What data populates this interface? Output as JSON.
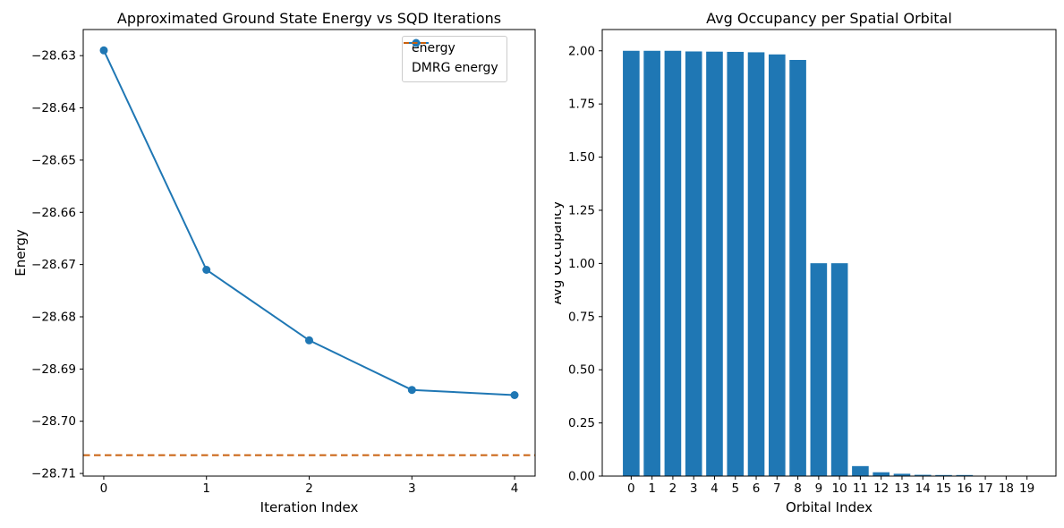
{
  "figure": {
    "background": "#ffffff",
    "axis_color": "#000000"
  },
  "chart_data": [
    {
      "type": "line",
      "title": "Approximated Ground State Energy vs SQD Iterations",
      "xlabel": "Iteration Index",
      "ylabel": "Energy",
      "x": [
        0,
        1,
        2,
        3,
        4
      ],
      "series": [
        {
          "name": "energy",
          "color": "#1f77b4",
          "marker": "circle",
          "values": [
            -28.629,
            -28.671,
            -28.6845,
            -28.694,
            -28.695
          ]
        }
      ],
      "reference_line": {
        "name": "DMRG energy",
        "color": "#c9600e",
        "style": "dashed",
        "value": -28.7065
      },
      "xlim": [
        -0.2,
        4.2
      ],
      "ylim": [
        -28.7105,
        -28.625
      ],
      "xticks": [
        0,
        1,
        2,
        3,
        4
      ],
      "xtick_labels": [
        "0",
        "1",
        "2",
        "3",
        "4"
      ],
      "yticks": [
        -28.63,
        -28.64,
        -28.65,
        -28.66,
        -28.67,
        -28.68,
        -28.69,
        -28.7,
        -28.71
      ],
      "ytick_labels": [
        "−28.63",
        "−28.64",
        "−28.65",
        "−28.66",
        "−28.67",
        "−28.68",
        "−28.69",
        "−28.70",
        "−28.71"
      ],
      "grid": false,
      "legend": {
        "position": "upper right",
        "entries": [
          {
            "label": "energy",
            "color": "#1f77b4",
            "style": "line-marker"
          },
          {
            "label": "DMRG energy",
            "color": "#c9600e",
            "style": "dashed"
          }
        ]
      }
    },
    {
      "type": "bar",
      "title": "Avg Occupancy per Spatial Orbital",
      "xlabel": "Orbital Index",
      "ylabel": "Avg Occupancy",
      "categories": [
        "0",
        "1",
        "2",
        "3",
        "4",
        "5",
        "6",
        "7",
        "8",
        "9",
        "10",
        "11",
        "12",
        "13",
        "14",
        "15",
        "16",
        "17",
        "18",
        "19"
      ],
      "values": [
        2.0,
        2.0,
        2.0,
        1.997,
        1.996,
        1.995,
        1.993,
        1.983,
        1.957,
        1.001,
        1.001,
        0.047,
        0.018,
        0.011,
        0.006,
        0.005,
        0.005,
        0.001,
        0.001,
        0.001
      ],
      "bar_color": "#1f77b4",
      "xlim": [
        -1.39,
        20.39
      ],
      "ylim": [
        0,
        2.1
      ],
      "yticks": [
        0,
        0.25,
        0.5,
        0.75,
        1.0,
        1.25,
        1.5,
        1.75,
        2.0
      ],
      "ytick_labels": [
        "0.00",
        "0.25",
        "0.50",
        "0.75",
        "1.00",
        "1.25",
        "1.50",
        "1.75",
        "2.00"
      ],
      "grid": false,
      "legend": null
    }
  ]
}
